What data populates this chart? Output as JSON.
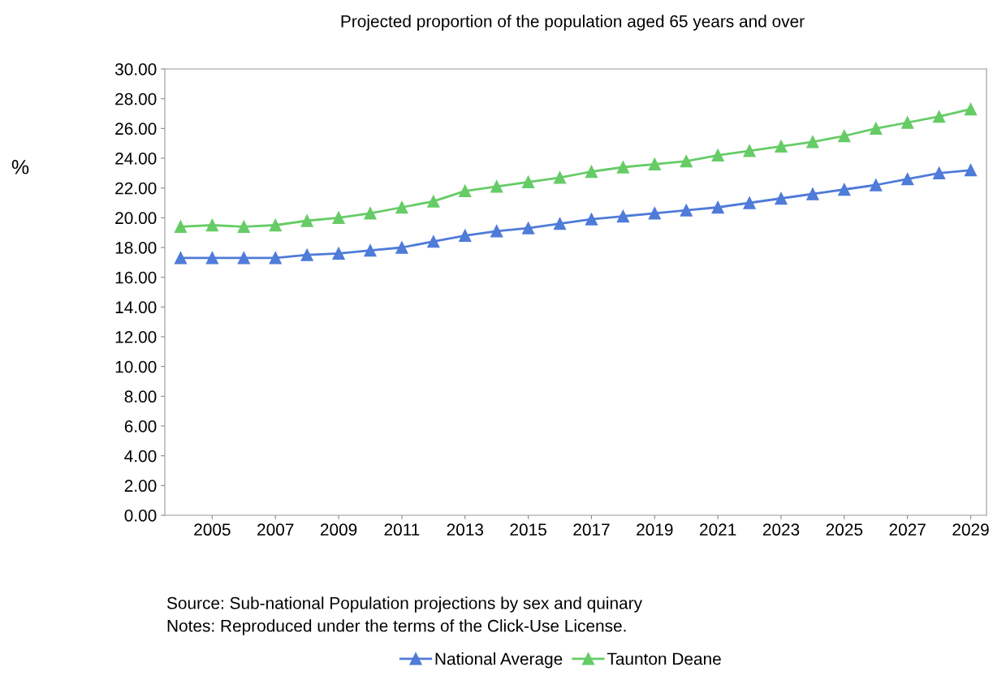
{
  "chart_data": {
    "type": "line",
    "title": "Projected proportion of the population aged 65 years and over",
    "ylabel": "%",
    "x": [
      2004,
      2005,
      2006,
      2007,
      2008,
      2009,
      2010,
      2011,
      2012,
      2013,
      2014,
      2015,
      2016,
      2017,
      2018,
      2019,
      2020,
      2021,
      2022,
      2023,
      2024,
      2025,
      2026,
      2027,
      2028,
      2029
    ],
    "series": [
      {
        "name": "National Average",
        "color": "#4f7bd9",
        "values": [
          17.3,
          17.3,
          17.3,
          17.3,
          17.5,
          17.6,
          17.8,
          18.0,
          18.4,
          18.8,
          19.1,
          19.3,
          19.6,
          19.9,
          20.1,
          20.3,
          20.5,
          20.7,
          21.0,
          21.3,
          21.6,
          21.9,
          22.2,
          22.6,
          23.0,
          23.2
        ]
      },
      {
        "name": "Taunton Deane",
        "color": "#66cc66",
        "values": [
          19.4,
          19.5,
          19.4,
          19.5,
          19.8,
          20.0,
          20.3,
          20.7,
          21.1,
          21.8,
          22.1,
          22.4,
          22.7,
          23.1,
          23.4,
          23.6,
          23.8,
          24.2,
          24.5,
          24.8,
          25.1,
          25.5,
          26.0,
          26.4,
          26.8,
          27.3
        ]
      }
    ],
    "xlim": [
      2003.5,
      2029.5
    ],
    "xticks": [
      2005,
      2007,
      2009,
      2011,
      2013,
      2015,
      2017,
      2019,
      2021,
      2023,
      2025,
      2027,
      2029
    ],
    "ylim": [
      0,
      30
    ],
    "yticks": [
      {
        "value": 0,
        "label": "0.00"
      },
      {
        "value": 2,
        "label": "2.00"
      },
      {
        "value": 4,
        "label": "4.00"
      },
      {
        "value": 6,
        "label": "6.00"
      },
      {
        "value": 8,
        "label": "8.00"
      },
      {
        "value": 10,
        "label": "10.00"
      },
      {
        "value": 12,
        "label": "12.00"
      },
      {
        "value": 14,
        "label": "14.00"
      },
      {
        "value": 16,
        "label": "16.00"
      },
      {
        "value": 18,
        "label": "18.00"
      },
      {
        "value": 20,
        "label": "20.00"
      },
      {
        "value": 22,
        "label": "22.00"
      },
      {
        "value": 24,
        "label": "24.00"
      },
      {
        "value": 26,
        "label": "26.00"
      },
      {
        "value": 28,
        "label": "28.00"
      },
      {
        "value": 30,
        "label": "30.00"
      }
    ],
    "annotations": [
      "Source: Sub-national Population projections by sex and quinary",
      "Notes: Reproduced under the terms of the Click-Use License."
    ],
    "legend": "bottom",
    "marker": "triangle",
    "line_style": "solid",
    "grid": false
  }
}
